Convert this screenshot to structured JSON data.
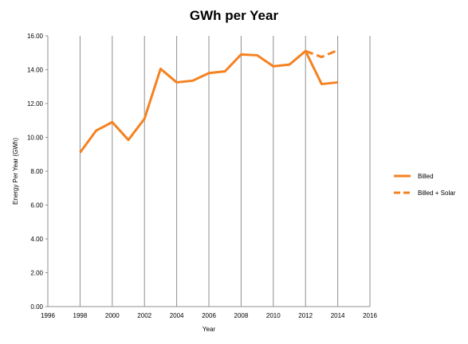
{
  "chart_data": {
    "type": "line",
    "title": "GWh per Year",
    "xlabel": "Year",
    "ylabel": "Energy Per Year (GWh)",
    "xlim": [
      1996,
      2016
    ],
    "ylim": [
      0,
      16
    ],
    "x_ticks": [
      "1996",
      "1998",
      "2000",
      "2002",
      "2004",
      "2006",
      "2008",
      "2010",
      "2012",
      "2014",
      "2016"
    ],
    "y_ticks": [
      "0.00",
      "2.00",
      "4.00",
      "6.00",
      "8.00",
      "10.00",
      "12.00",
      "14.00",
      "16.00"
    ],
    "grid": {
      "vertical": true,
      "horizontal": false
    },
    "legend_position": "right",
    "series": [
      {
        "name": "Billed",
        "color": "#F58220",
        "line_style": "solid",
        "points": [
          {
            "x": 1998,
            "y": 9.1
          },
          {
            "x": 1999,
            "y": 10.4
          },
          {
            "x": 2000,
            "y": 10.9
          },
          {
            "x": 2001,
            "y": 9.85
          },
          {
            "x": 2002,
            "y": 11.1
          },
          {
            "x": 2003,
            "y": 14.05
          },
          {
            "x": 2004,
            "y": 13.25
          },
          {
            "x": 2005,
            "y": 13.35
          },
          {
            "x": 2006,
            "y": 13.8
          },
          {
            "x": 2007,
            "y": 13.9
          },
          {
            "x": 2008,
            "y": 14.9
          },
          {
            "x": 2009,
            "y": 14.85
          },
          {
            "x": 2010,
            "y": 14.2
          },
          {
            "x": 2011,
            "y": 14.3
          },
          {
            "x": 2012,
            "y": 15.1
          },
          {
            "x": 2013,
            "y": 13.15
          },
          {
            "x": 2014,
            "y": 13.25
          }
        ]
      },
      {
        "name": "Billed + Solar",
        "color": "#F58220",
        "line_style": "dashed",
        "points": [
          {
            "x": 2012,
            "y": 15.1
          },
          {
            "x": 2013,
            "y": 14.75
          },
          {
            "x": 2014,
            "y": 15.15
          }
        ]
      }
    ]
  }
}
